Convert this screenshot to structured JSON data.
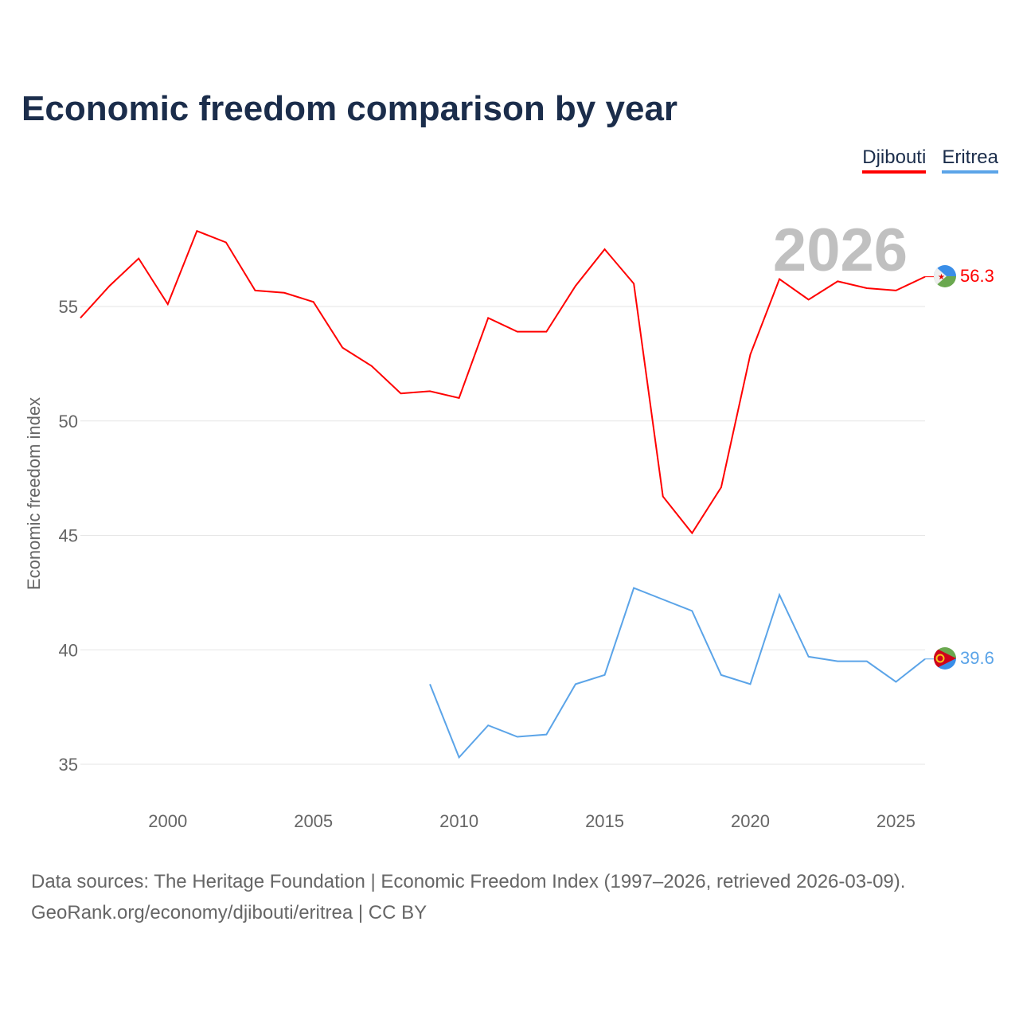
{
  "chart_data": {
    "type": "line",
    "title": "Economic freedom comparison by year",
    "ylabel": "Economic freedom index",
    "xlabel": "",
    "xlim": [
      1997,
      2026
    ],
    "ylim": [
      33.5,
      59
    ],
    "grid": true,
    "legend_position": "top-right",
    "x_ticks": [
      2000,
      2005,
      2010,
      2015,
      2020,
      2025
    ],
    "y_ticks": [
      35,
      40,
      45,
      50,
      55
    ],
    "year_label": "2026",
    "series": [
      {
        "name": "Djibouti",
        "color": "#ff0000",
        "x": [
          1997,
          1998,
          1999,
          2000,
          2001,
          2002,
          2003,
          2004,
          2005,
          2006,
          2007,
          2008,
          2009,
          2010,
          2011,
          2012,
          2013,
          2014,
          2015,
          2016,
          2017,
          2018,
          2019,
          2020,
          2021,
          2022,
          2023,
          2024,
          2025,
          2026
        ],
        "values": [
          54.5,
          55.9,
          57.1,
          55.1,
          58.3,
          57.8,
          55.7,
          55.6,
          55.2,
          53.2,
          52.4,
          51.2,
          51.3,
          51.0,
          54.5,
          53.9,
          53.9,
          55.9,
          57.5,
          56.0,
          46.7,
          45.1,
          47.1,
          52.9,
          56.2,
          55.3,
          56.1,
          55.8,
          55.7,
          56.3
        ],
        "end_label": "56.3"
      },
      {
        "name": "Eritrea",
        "color": "#5ba4e8",
        "x": [
          2009,
          2010,
          2011,
          2012,
          2013,
          2014,
          2015,
          2016,
          2017,
          2018,
          2019,
          2020,
          2021,
          2022,
          2023,
          2024,
          2025,
          2026
        ],
        "values": [
          38.5,
          35.3,
          36.7,
          36.2,
          36.3,
          38.5,
          38.9,
          42.7,
          42.2,
          41.7,
          38.9,
          38.5,
          42.4,
          39.7,
          39.5,
          39.5,
          38.6,
          39.6
        ],
        "end_label": "39.6"
      }
    ]
  },
  "footer": {
    "line1": "Data sources: The Heritage Foundation | Economic Freedom Index (1997–2026, retrieved 2026-03-09).",
    "line2": "GeoRank.org/economy/djibouti/eritrea | CC BY"
  }
}
